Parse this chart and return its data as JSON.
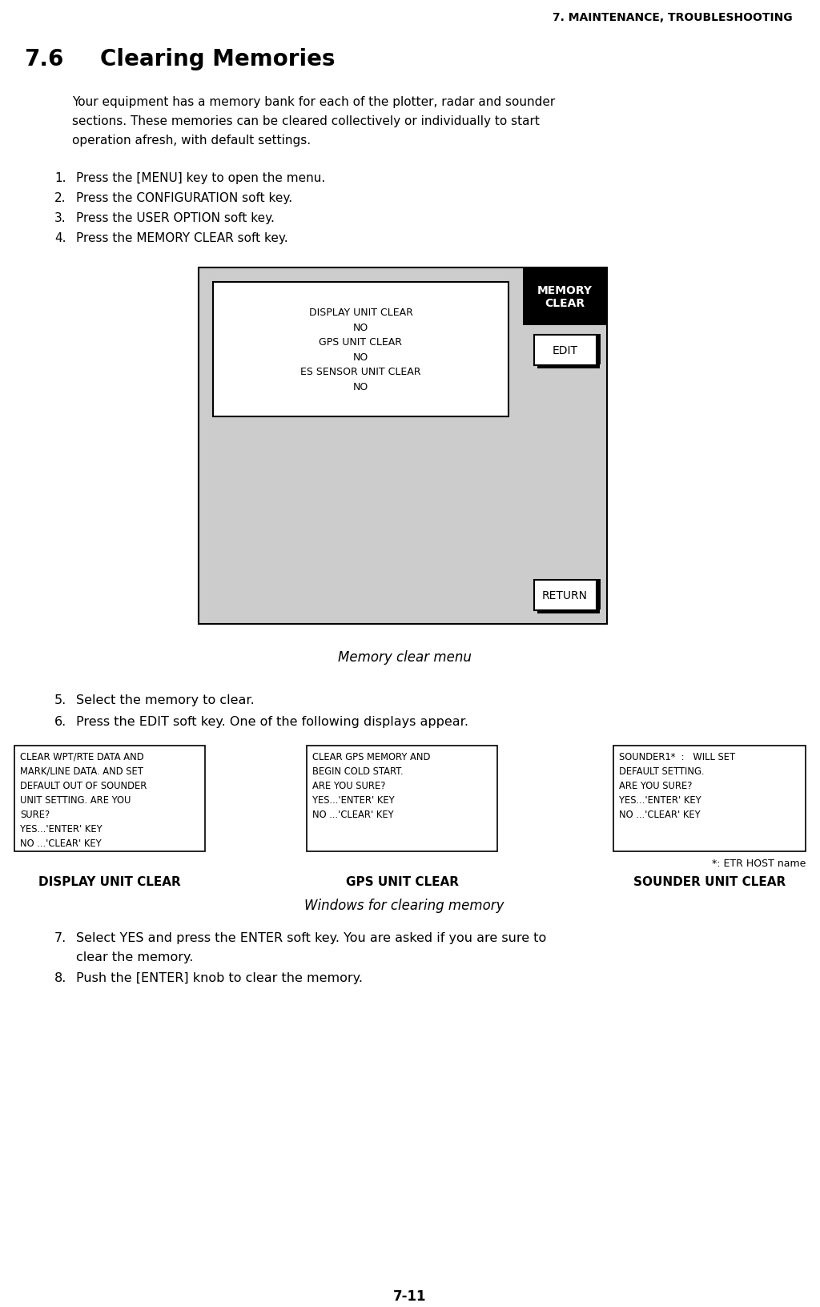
{
  "page_header": "7. MAINTENANCE, TROUBLESHOOTING",
  "section_num": "7.6",
  "section_title": "Clearing Memories",
  "body_line1": "Your equipment has a memory bank for each of the plotter, radar and sounder",
  "body_line2": "sections. These memories can be cleared collectively or individually to start",
  "body_line3": "operation afresh, with default settings.",
  "steps_1_4": [
    "Press the [MENU] key to open the menu.",
    "Press the CONFIGURATION soft key.",
    "Press the USER OPTION soft key.",
    "Press the MEMORY CLEAR soft key."
  ],
  "menu_title": "MEMORY\nCLEAR",
  "menu_content": "DISPLAY UNIT CLEAR\nNO\nGPS UNIT CLEAR\nNO\nES SENSOR UNIT CLEAR\nNO",
  "edit_label": "EDIT",
  "return_label": "RETURN",
  "caption1": "Memory clear menu",
  "steps_5_6": [
    "Select the memory to clear.",
    "Press the EDIT soft key. One of the following displays appear."
  ],
  "box1_text": "CLEAR WPT/RTE DATA AND\nMARK/LINE DATA. AND SET\nDEFAULT OUT OF SOUNDER\nUNIT SETTING. ARE YOU\nSURE?\nYES...'ENTER' KEY\nNO ...'CLEAR' KEY",
  "box2_text": "CLEAR GPS MEMORY AND\nBEGIN COLD START.\nARE YOU SURE?\nYES...'ENTER' KEY\nNO ...'CLEAR' KEY",
  "box3_text": "SOUNDER1*  :   WILL SET\nDEFAULT SETTING.\nARE YOU SURE?\nYES...'ENTER' KEY\nNO ...'CLEAR' KEY",
  "footnote": "*: ETR HOST name",
  "label1": "DISPLAY UNIT CLEAR",
  "label2": "GPS UNIT CLEAR",
  "label3": "SOUNDER UNIT CLEAR",
  "caption2": "Windows for clearing memory",
  "step7": "Select YES and press the ENTER soft key. You are asked if you are sure to",
  "step7b": "clear the memory.",
  "step8": "Push the [ENTER] knob to clear the memory.",
  "page_num": "7-11",
  "bg_color": "#ffffff",
  "menu_bg": "#cccccc",
  "menu_header_bg": "#000000",
  "menu_header_fg": "#ffffff"
}
